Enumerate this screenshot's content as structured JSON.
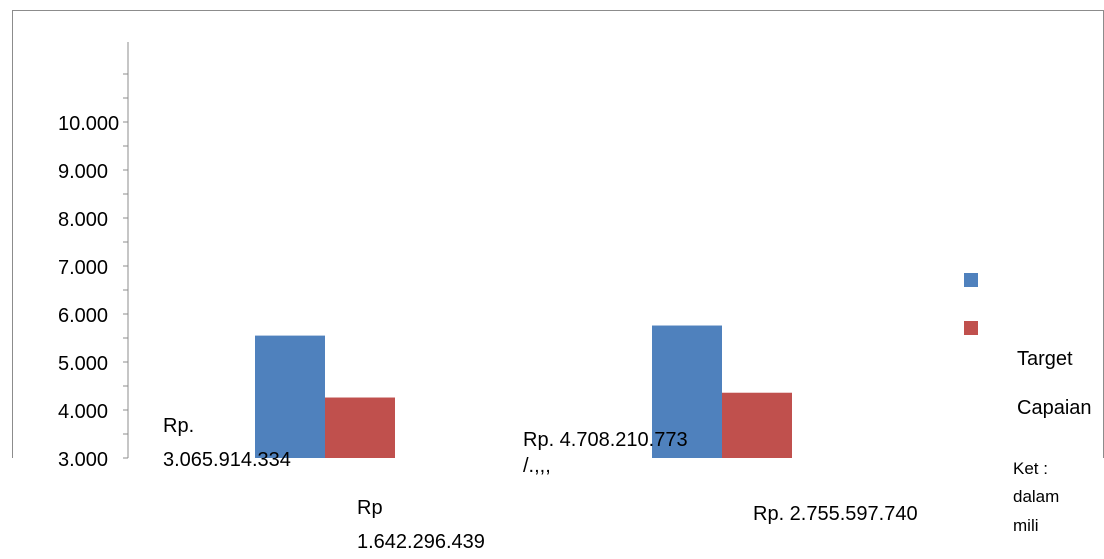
{
  "chart_data": {
    "type": "bar",
    "title": "",
    "xlabel": "",
    "ylabel": "",
    "y_ticks": [
      "10.000",
      "9.000",
      "8.000",
      "7.000",
      "6.000",
      "5.000",
      "4.000",
      "3.000"
    ],
    "y_tick_values": [
      10000,
      9000,
      8000,
      7000,
      6000,
      5000,
      4000,
      3000
    ],
    "ylim": [
      3000,
      11000
    ],
    "grid": false,
    "legend_position": "right",
    "categories": [
      "",
      ""
    ],
    "series": [
      {
        "name": "Target",
        "color": "#4f81bd",
        "values": [
          5550,
          5760
        ]
      },
      {
        "name": "Capaian",
        "color": "#c0504d",
        "values": [
          4260,
          4360
        ]
      }
    ],
    "annotations": {
      "group1_target_line1": "Rp.",
      "group1_target_line2": "3.065.914.334",
      "group1_capaian_line1": "Rp",
      "group1_capaian_line2": "1.642.296.439",
      "group2_target_line1": "Rp. 4.708.210.773",
      "group2_target_line2": "/.,,,",
      "group2_capaian": "Rp. 2.755.597.740"
    },
    "note_lines": [
      "Ket :",
      "dalam",
      "mili"
    ]
  }
}
